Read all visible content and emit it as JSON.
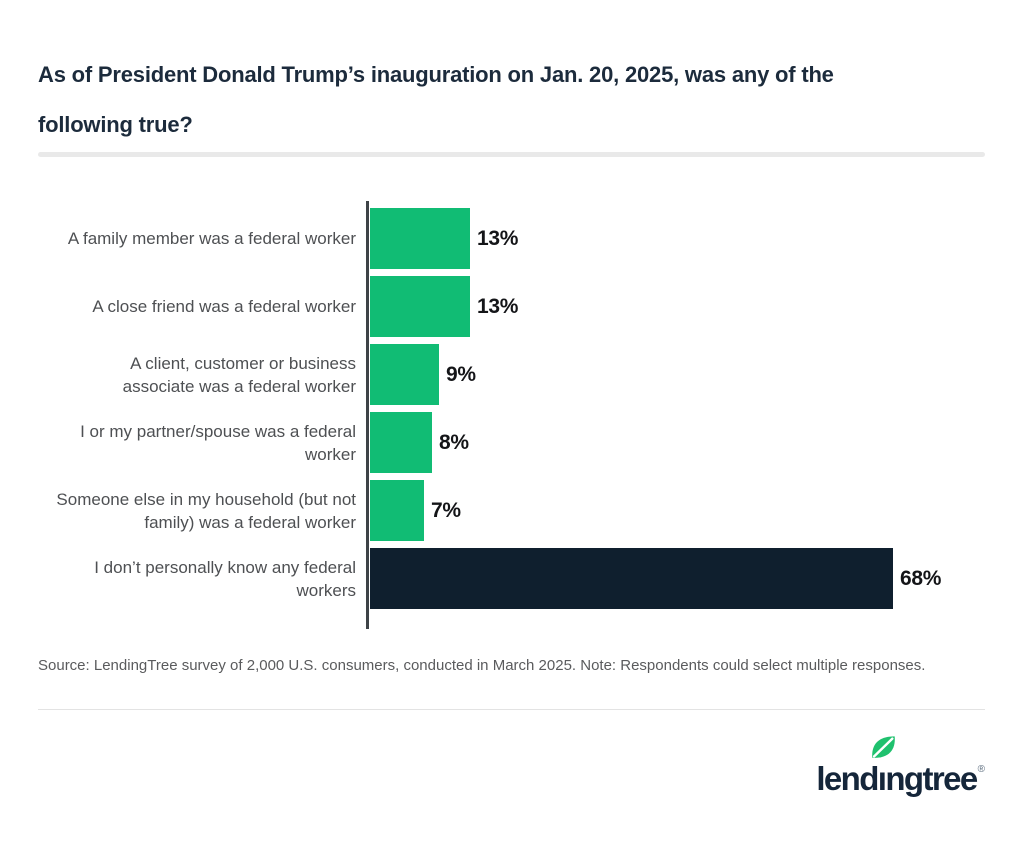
{
  "header": {
    "title_lines": [
      "As of President Donald Trump’s inauguration on Jan. 20, 2025, was any of the",
      "following true?"
    ]
  },
  "chart_data": {
    "type": "bar",
    "orientation": "horizontal",
    "title": "As of President Donald Trump’s inauguration on Jan. 20, 2025, was any of the following true?",
    "categories": [
      "A family member was a federal worker",
      "A close friend was a federal worker",
      "A client, customer or business associate was a federal worker",
      "I or my partner/spouse was a federal worker",
      "Someone else in my household (but not family) was a federal worker",
      "I don’t personally know any federal workers"
    ],
    "category_lines": [
      [
        "A family member was a federal worker"
      ],
      [
        "A close friend was a federal worker"
      ],
      [
        "A client, customer or business",
        "associate was a federal worker"
      ],
      [
        "I or my partner/spouse was a federal",
        "worker"
      ],
      [
        "Someone else in my household (but not",
        "family) was a federal worker"
      ],
      [
        "I don’t personally know any federal",
        "workers"
      ]
    ],
    "values": [
      13,
      13,
      9,
      8,
      7,
      68
    ],
    "value_labels": [
      "13%",
      "13%",
      "9%",
      "8%",
      "7%",
      "68%"
    ],
    "unit": "%",
    "xlim": [
      0,
      70
    ],
    "grid": false,
    "legend": "none",
    "bar_colors": [
      "#11BC74",
      "#11BC74",
      "#11BC74",
      "#11BC74",
      "#11BC74",
      "#0F1F2E"
    ]
  },
  "footer": {
    "source_note": "Source: LendingTree survey of 2,000 U.S. consumers, conducted in March 2025. Note: Respondents could select multiple responses.",
    "logo": {
      "text_before_i": "lend",
      "dotless_i": "ı",
      "text_after_i": "ngtree",
      "registered_mark": "®",
      "full_name": "lendingtree"
    }
  },
  "colors": {
    "accent_green": "#11BC74",
    "leaf_green": "#1FC16E",
    "brand_navy": "#0F1F2E",
    "title_navy": "#1C2B3C",
    "label_gray": "#4E5053",
    "axis_gray": "#3E4347"
  }
}
